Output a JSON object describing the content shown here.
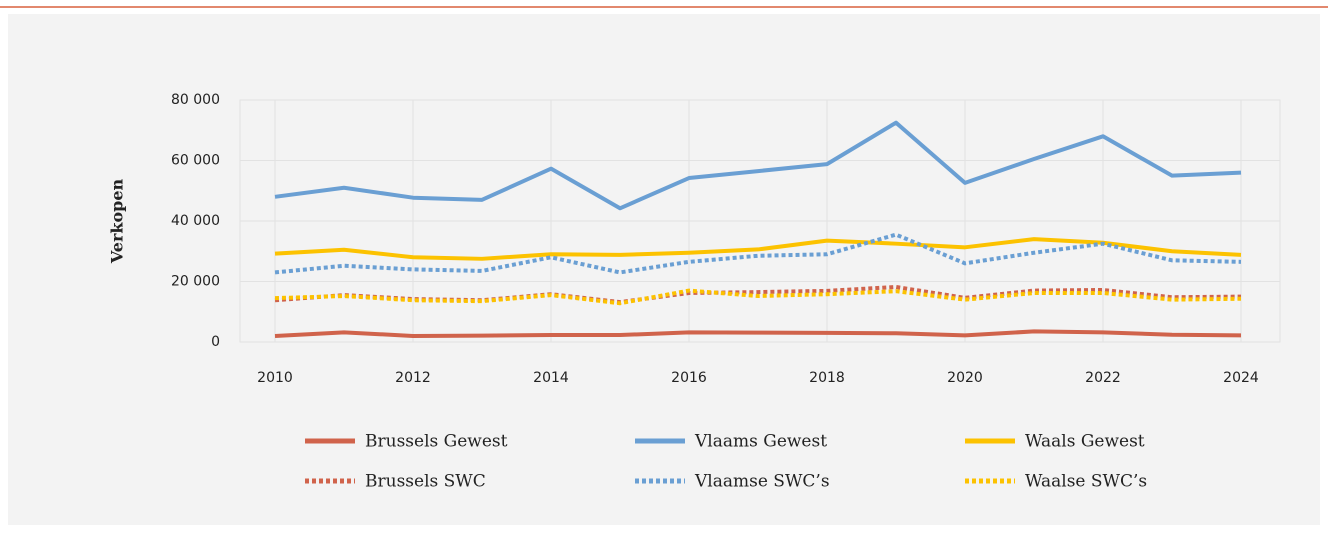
{
  "chart_data": {
    "type": "line",
    "y_label": "Verkopen",
    "x": [
      2010,
      2011,
      2012,
      2013,
      2014,
      2015,
      2016,
      2017,
      2018,
      2019,
      2020,
      2021,
      2022,
      2023,
      2024
    ],
    "xlim": [
      2010,
      2024
    ],
    "xticks": [
      2010,
      2012,
      2014,
      2016,
      2018,
      2020,
      2022,
      2024
    ],
    "ylim": [
      0,
      80000
    ],
    "yticks": [
      0,
      {
        "value": 20000,
        "label": "20 000"
      },
      {
        "value": 40000,
        "label": "40 000"
      },
      {
        "value": 60000,
        "label": "60 000"
      },
      {
        "value": 80000,
        "label": "80 000"
      }
    ],
    "grid": true,
    "legend": "bottom",
    "series": [
      {
        "name": "Brussels Gewest",
        "color": "#d0634b",
        "style": "solid",
        "values": [
          2000,
          3200,
          2000,
          2100,
          2300,
          2300,
          3200,
          3100,
          3000,
          2900,
          2200,
          3500,
          3200,
          2400,
          2200
        ]
      },
      {
        "name": "Vlaams Gewest",
        "color": "#6a9fd3",
        "style": "solid",
        "values": [
          48000,
          51000,
          47700,
          47000,
          57300,
          44200,
          54200,
          56500,
          58800,
          72500,
          52600,
          60500,
          68000,
          55000,
          56000
        ]
      },
      {
        "name": "Waals Gewest",
        "color": "#fcc200",
        "style": "solid",
        "values": [
          29200,
          30500,
          28000,
          27500,
          29000,
          28800,
          29500,
          30600,
          33500,
          32500,
          31300,
          34000,
          32800,
          30000,
          28800
        ]
      },
      {
        "name": "Brussels SWC",
        "color": "#d0634b",
        "style": "dotted",
        "values": [
          13800,
          15500,
          14200,
          13800,
          15800,
          13200,
          16200,
          16500,
          16900,
          18200,
          14600,
          17000,
          17200,
          14800,
          15000
        ]
      },
      {
        "name": "Vlaamse SWC’s",
        "color": "#6a9fd3",
        "style": "dotted",
        "values": [
          23000,
          25200,
          24000,
          23500,
          28000,
          23000,
          26500,
          28500,
          29000,
          35500,
          26000,
          29500,
          32500,
          27000,
          26500
        ]
      },
      {
        "name": "Waalse SWC’s",
        "color": "#fcc200",
        "style": "dotted",
        "values": [
          14500,
          15200,
          13800,
          13500,
          15500,
          12800,
          17000,
          15200,
          15800,
          16800,
          14000,
          16200,
          16200,
          14000,
          14300
        ]
      }
    ]
  }
}
